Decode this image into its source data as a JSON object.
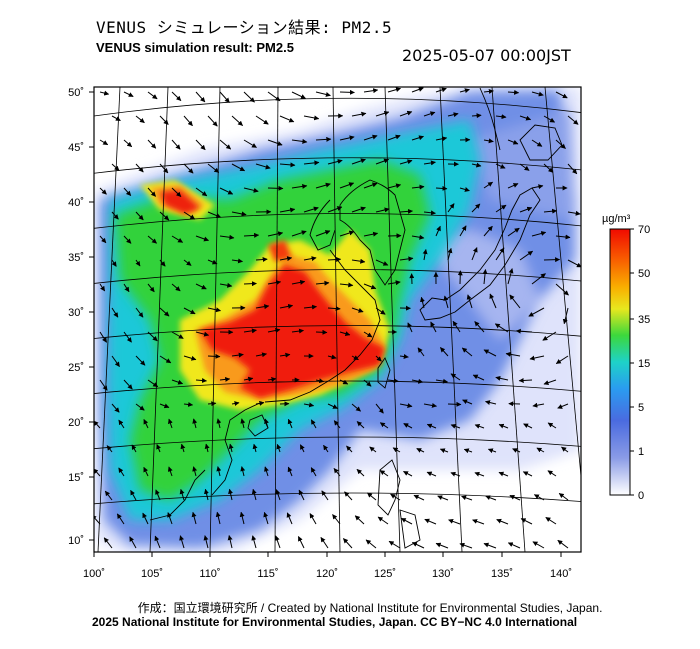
{
  "header": {
    "title_jp": "VENUS シミュレーション結果: PM2.5",
    "title_en": "VENUS simulation result: PM2.5",
    "timestamp": "2025-05-07 00:00JST"
  },
  "map": {
    "lon_range": [
      100,
      142
    ],
    "lat_range": [
      9,
      51
    ],
    "lon_ticks": [
      "100˚",
      "105˚",
      "110˚",
      "115˚",
      "120˚",
      "125˚",
      "130˚",
      "135˚",
      "140˚"
    ],
    "lat_ticks": [
      "50˚",
      "45˚",
      "40˚",
      "35˚",
      "30˚",
      "25˚",
      "20˚",
      "15˚",
      "10˚"
    ],
    "plume_colors": {
      "very_low": "#e6e8fb",
      "low": "#7b8ee8",
      "light_blue": "#3aa2ec",
      "cyan": "#22d0d8",
      "green": "#35d43a",
      "yellow": "#f2e61e",
      "orange": "#f99f1b",
      "red": "#f11b0f"
    },
    "arrow_color": "#000000",
    "coast_color": "#000000",
    "grid_color": "#000000"
  },
  "colorbar": {
    "unit": "µg/m³",
    "ticks": [
      "70",
      "50",
      "35",
      "15",
      "5",
      "1",
      "0"
    ],
    "gradient": [
      "#f00a00",
      "#f85a00",
      "#f9b000",
      "#e8e81e",
      "#3cd83c",
      "#1ed2c8",
      "#2a9cf0",
      "#4a6be0",
      "#8a9be6",
      "#ffffff"
    ]
  },
  "footer": {
    "credit": "作成：国立環境研究所 / Created by National Institute for Environmental Studies, Japan.",
    "license": "2025 National Institute for Environmental Studies, Japan. CC BY−NC 4.0 International"
  }
}
